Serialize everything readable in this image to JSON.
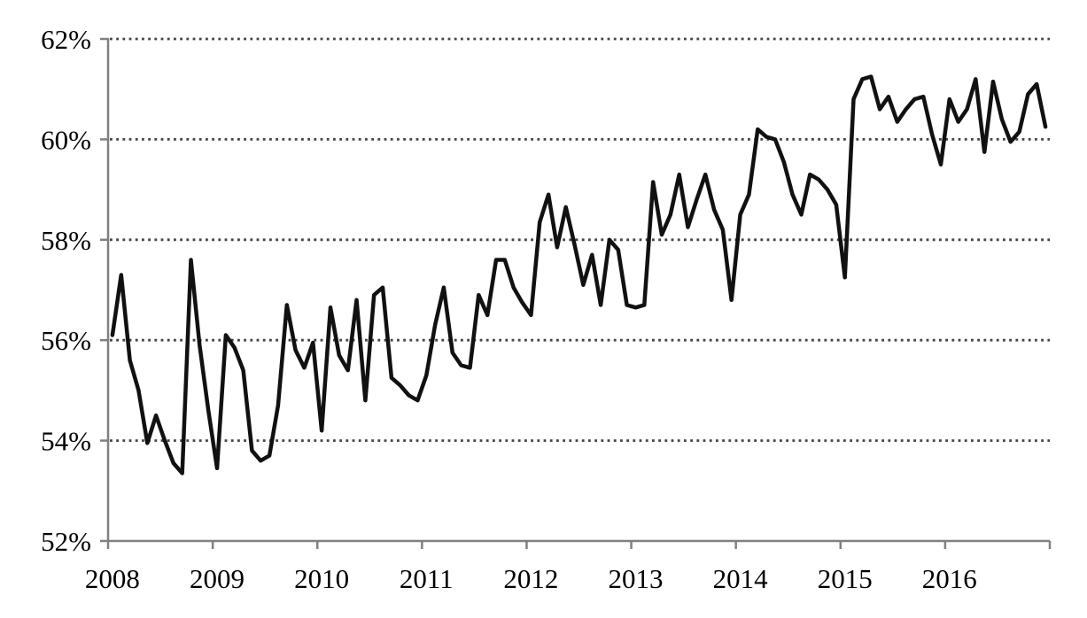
{
  "chart_data": {
    "type": "line",
    "title": "",
    "xlabel": "",
    "ylabel": "",
    "x_labels": [
      "2008",
      "2009",
      "2010",
      "2011",
      "2012",
      "2013",
      "2014",
      "2015",
      "2016"
    ],
    "y_tick_labels": [
      "52%",
      "54%",
      "56%",
      "58%",
      "60%",
      "62%"
    ],
    "y_tick_values": [
      52,
      54,
      56,
      58,
      60,
      62
    ],
    "ylim": [
      52,
      62
    ],
    "frequency": "monthly",
    "x_start": "2008-01",
    "x_end": "2016-12",
    "grid": "horizontal-dotted",
    "legend_position": "none",
    "series": [
      {
        "name": "percentage",
        "values": [
          56.1,
          57.3,
          55.6,
          55.0,
          53.95,
          54.5,
          54.0,
          53.55,
          53.35,
          57.6,
          55.9,
          54.6,
          53.45,
          56.1,
          55.85,
          55.4,
          53.8,
          53.6,
          53.7,
          54.7,
          56.7,
          55.8,
          55.45,
          55.95,
          54.2,
          56.65,
          55.7,
          55.4,
          56.8,
          54.8,
          56.9,
          57.05,
          55.25,
          55.1,
          54.9,
          54.8,
          55.3,
          56.3,
          57.05,
          55.75,
          55.5,
          55.45,
          56.9,
          56.5,
          57.6,
          57.6,
          57.05,
          56.75,
          56.5,
          58.35,
          58.9,
          57.85,
          58.65,
          57.9,
          57.1,
          57.7,
          56.7,
          58.0,
          57.8,
          56.7,
          56.65,
          56.7,
          59.15,
          58.1,
          58.5,
          59.3,
          58.25,
          58.8,
          59.3,
          58.6,
          58.2,
          56.8,
          58.5,
          58.9,
          60.2,
          60.05,
          60.0,
          59.55,
          58.9,
          58.5,
          59.3,
          59.2,
          59.0,
          58.7,
          57.25,
          60.8,
          61.2,
          61.25,
          60.6,
          60.85,
          60.35,
          60.6,
          60.8,
          60.85,
          60.1,
          59.5,
          60.8,
          60.35,
          60.6,
          61.2,
          59.75,
          61.15,
          60.4,
          59.95,
          60.15,
          60.9,
          61.1,
          60.25
        ]
      }
    ]
  },
  "colors": {
    "background": "#ffffff",
    "line": "#111111",
    "axis": "#808080",
    "grid_dots": "#444444",
    "tick_label": "#000000"
  }
}
